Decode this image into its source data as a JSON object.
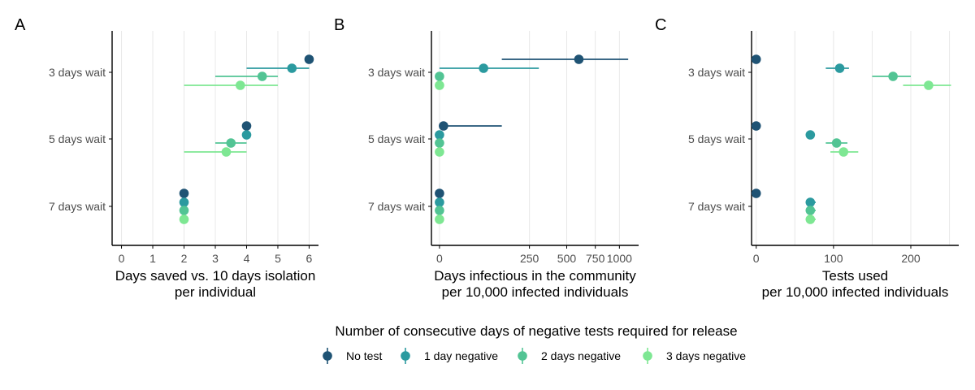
{
  "colors": {
    "no_test": "#1f5374",
    "one_day": "#2b9a9f",
    "two_days": "#52c494",
    "three_days": "#7ee793",
    "axis": "#000000",
    "grid": "#e8e8e8",
    "tick_text": "#4d4d4d",
    "title_text": "#000000"
  },
  "legend": {
    "title": "Number of consecutive days of negative tests required for release",
    "entries": [
      {
        "label": "No test",
        "color_key": "no_test"
      },
      {
        "label": "1 day negative",
        "color_key": "one_day"
      },
      {
        "label": "2 days negative",
        "color_key": "two_days"
      },
      {
        "label": "3 days negative",
        "color_key": "three_days"
      }
    ]
  },
  "chart_data": [
    {
      "type": "scatter",
      "panel_label": "A",
      "xlabel_lines": [
        "Days saved vs. 10 days isolation",
        "per individual"
      ],
      "x_scale": "linear",
      "xlim": [
        -0.3,
        6.3
      ],
      "x_ticks": [
        0,
        1,
        2,
        3,
        4,
        5,
        6
      ],
      "x_tick_labels": [
        "0",
        "1",
        "2",
        "3",
        "4",
        "5",
        "6"
      ],
      "grid": "vertical",
      "categories": [
        "3 days wait",
        "5 days wait",
        "7 days wait"
      ],
      "series": [
        {
          "name": "No test",
          "color_key": "no_test",
          "points": [
            {
              "x": 6.0,
              "lo": 6.0,
              "hi": 6.0
            },
            {
              "x": 4.0,
              "lo": 4.0,
              "hi": 4.0
            },
            {
              "x": 2.0,
              "lo": 2.0,
              "hi": 2.0
            }
          ]
        },
        {
          "name": "1 day negative",
          "color_key": "one_day",
          "points": [
            {
              "x": 5.45,
              "lo": 4.0,
              "hi": 6.0
            },
            {
              "x": 4.0,
              "lo": 4.0,
              "hi": 4.0
            },
            {
              "x": 2.0,
              "lo": 2.0,
              "hi": 2.0
            }
          ]
        },
        {
          "name": "2 days negative",
          "color_key": "two_days",
          "points": [
            {
              "x": 4.5,
              "lo": 3.0,
              "hi": 5.0
            },
            {
              "x": 3.5,
              "lo": 3.0,
              "hi": 4.0
            },
            {
              "x": 2.0,
              "lo": 2.0,
              "hi": 2.0
            }
          ]
        },
        {
          "name": "3 days negative",
          "color_key": "three_days",
          "points": [
            {
              "x": 3.8,
              "lo": 2.0,
              "hi": 5.0
            },
            {
              "x": 3.35,
              "lo": 2.0,
              "hi": 4.0
            },
            {
              "x": 2.0,
              "lo": 2.0,
              "hi": 2.0
            }
          ]
        }
      ]
    },
    {
      "type": "scatter",
      "panel_label": "B",
      "xlabel_lines": [
        "Days infectious in the community",
        "per 10,000 infected individuals"
      ],
      "x_scale": "sqrt",
      "xlim": [
        -2,
        1225
      ],
      "x_ticks": [
        0,
        250,
        500,
        750,
        1000
      ],
      "x_tick_labels": [
        "0",
        "250",
        "500",
        "750",
        "1000"
      ],
      "grid": "vertical",
      "categories": [
        "3 days wait",
        "5 days wait",
        "7 days wait"
      ],
      "series": [
        {
          "name": "No test",
          "color_key": "no_test",
          "points": [
            {
              "x": 600,
              "lo": 120,
              "hi": 1100
            },
            {
              "x": 0.5,
              "lo": 0,
              "hi": 120
            },
            {
              "x": 0,
              "lo": 0,
              "hi": 0
            }
          ]
        },
        {
          "name": "1 day negative",
          "color_key": "one_day",
          "points": [
            {
              "x": 60,
              "lo": 0,
              "hi": 305
            },
            {
              "x": 0,
              "lo": 0,
              "hi": 0
            },
            {
              "x": 0,
              "lo": 0,
              "hi": 0
            }
          ]
        },
        {
          "name": "2 days negative",
          "color_key": "two_days",
          "points": [
            {
              "x": 0,
              "lo": 0,
              "hi": 0
            },
            {
              "x": 0,
              "lo": 0,
              "hi": 0
            },
            {
              "x": 0,
              "lo": 0,
              "hi": 0
            }
          ]
        },
        {
          "name": "3 days negative",
          "color_key": "three_days",
          "points": [
            {
              "x": 0,
              "lo": 0,
              "hi": 0
            },
            {
              "x": 0,
              "lo": 0,
              "hi": 0
            },
            {
              "x": 0,
              "lo": 0,
              "hi": 0
            }
          ]
        }
      ]
    },
    {
      "type": "scatter",
      "panel_label": "C",
      "xlabel_lines": [
        "Tests used",
        "per 10,000 infected individuals"
      ],
      "x_scale": "linear",
      "xlim": [
        -6,
        262
      ],
      "x_ticks": [
        0,
        100,
        200
      ],
      "x_tick_labels": [
        "0",
        "100",
        "200"
      ],
      "minor_grid": [
        50,
        150,
        250
      ],
      "grid": "vertical",
      "categories": [
        "3 days wait",
        "5 days wait",
        "7 days wait"
      ],
      "series": [
        {
          "name": "No test",
          "color_key": "no_test",
          "points": [
            {
              "x": 0,
              "lo": 0,
              "hi": 0
            },
            {
              "x": 0,
              "lo": 0,
              "hi": 0
            },
            {
              "x": 0,
              "lo": 0,
              "hi": 0
            }
          ]
        },
        {
          "name": "1 day negative",
          "color_key": "one_day",
          "points": [
            {
              "x": 108,
              "lo": 90,
              "hi": 120
            },
            {
              "x": 70,
              "lo": 66,
              "hi": 75
            },
            {
              "x": 70,
              "lo": 64,
              "hi": 77
            }
          ]
        },
        {
          "name": "2 days negative",
          "color_key": "two_days",
          "points": [
            {
              "x": 177,
              "lo": 150,
              "hi": 200
            },
            {
              "x": 104,
              "lo": 90,
              "hi": 118
            },
            {
              "x": 70,
              "lo": 64,
              "hi": 77
            }
          ]
        },
        {
          "name": "3 days negative",
          "color_key": "three_days",
          "points": [
            {
              "x": 223,
              "lo": 190,
              "hi": 252
            },
            {
              "x": 113,
              "lo": 96,
              "hi": 132
            },
            {
              "x": 70,
              "lo": 64,
              "hi": 77
            }
          ]
        }
      ]
    }
  ]
}
